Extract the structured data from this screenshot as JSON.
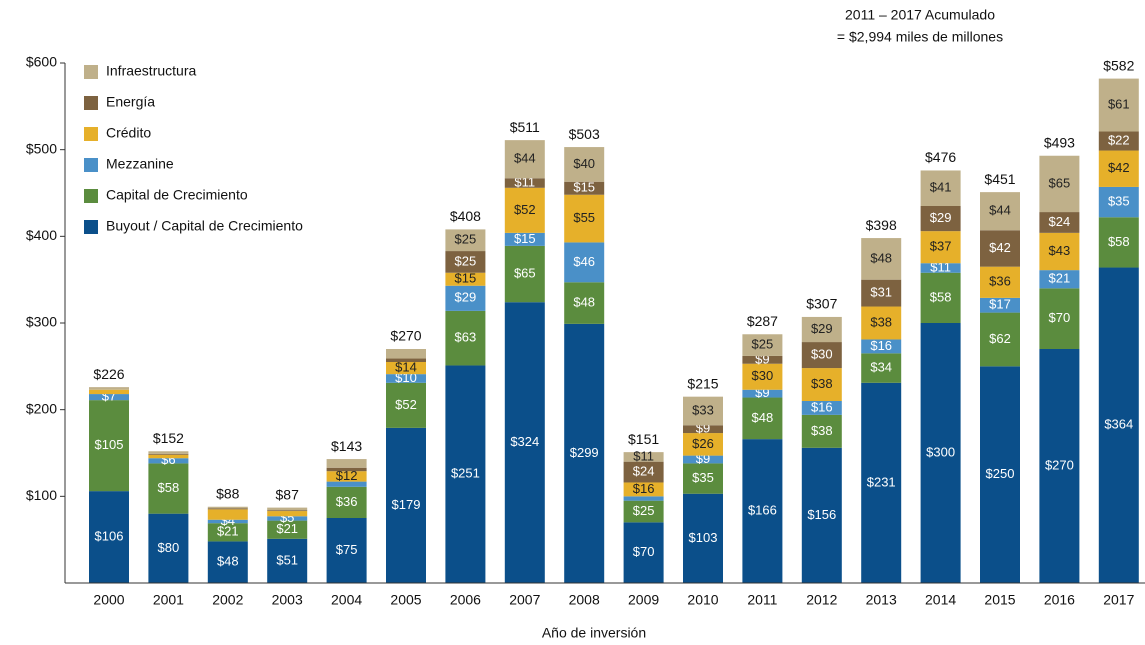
{
  "chart_data": {
    "type": "stacked_bar",
    "annotation": [
      "2011 – 2017 Acumulado",
      "= $2,994 miles de millones"
    ],
    "xlabel": "Año de inversión",
    "categories": [
      "2000",
      "2001",
      "2002",
      "2003",
      "2004",
      "2005",
      "2006",
      "2007",
      "2008",
      "2009",
      "2010",
      "2011",
      "2012",
      "2013",
      "2014",
      "2015",
      "2016",
      "2017"
    ],
    "series": [
      {
        "name": "Buyout / Capital de Crecimiento",
        "color": "#0b4f8a",
        "label_color": "#ffffff",
        "values": [
          106,
          80,
          48,
          51,
          75,
          179,
          251,
          324,
          299,
          70,
          103,
          166,
          156,
          231,
          300,
          250,
          270,
          364
        ],
        "value_labels": [
          "$106",
          "$80",
          "$48",
          "$51",
          "$75",
          "$179",
          "$251",
          "$324",
          "$299",
          "$70",
          "$103",
          "$166",
          "$156",
          "$231",
          "$300",
          "$250",
          "$270",
          "$364"
        ]
      },
      {
        "name": "Capital de Crecimiento",
        "color": "#5b8c3e",
        "label_color": "#ffffff",
        "values": [
          105,
          58,
          21,
          21,
          36,
          52,
          63,
          65,
          48,
          25,
          35,
          48,
          38,
          34,
          58,
          62,
          70,
          58
        ],
        "value_labels": [
          "$105",
          "$58",
          "$21",
          "$21",
          "$36",
          "$52",
          "$63",
          "$65",
          "$48",
          "$25",
          "$35",
          "$48",
          "$38",
          "$34",
          "$58",
          "$62",
          "$70",
          "$58"
        ]
      },
      {
        "name": "Mezzanine",
        "color": "#4a90c8",
        "label_color": "#ffffff",
        "values": [
          7,
          6,
          4,
          5,
          6,
          10,
          29,
          15,
          46,
          5,
          9,
          9,
          16,
          16,
          11,
          17,
          21,
          35
        ],
        "value_labels": [
          "$7",
          "$6",
          "$4",
          "$5",
          null,
          "$10",
          "$29",
          "$15",
          "$46",
          null,
          "$9",
          "$9",
          "$16",
          "$16",
          "$11",
          "$17",
          "$21",
          "$35"
        ]
      },
      {
        "name": "Crédito",
        "color": "#e6b02a",
        "label_color": "#222222",
        "values": [
          5,
          4,
          12,
          6,
          12,
          14,
          15,
          52,
          55,
          16,
          26,
          30,
          38,
          38,
          37,
          36,
          43,
          42
        ],
        "value_labels": [
          null,
          null,
          null,
          null,
          "$12",
          "$14",
          "$15",
          "$52",
          "$55",
          "$16",
          "$26",
          "$30",
          "$38",
          "$38",
          "$37",
          "$36",
          "$43",
          "$42"
        ]
      },
      {
        "name": "Energía",
        "color": "#7d6240",
        "label_color": "#ffffff",
        "values": [
          0,
          1,
          1,
          1,
          4,
          4,
          25,
          11,
          15,
          24,
          9,
          9,
          30,
          31,
          29,
          42,
          24,
          22
        ],
        "value_labels": [
          null,
          null,
          null,
          null,
          null,
          null,
          "$25",
          "$11",
          "$15",
          "$24",
          "$9",
          "$9",
          "$30",
          "$31",
          "$29",
          "$42",
          "$24",
          "$22"
        ]
      },
      {
        "name": "Infraestructura",
        "color": "#bfb08a",
        "label_color": "#222222",
        "values": [
          3,
          3,
          2,
          3,
          10,
          11,
          25,
          44,
          40,
          11,
          33,
          25,
          29,
          48,
          41,
          44,
          65,
          61
        ],
        "value_labels": [
          null,
          null,
          null,
          null,
          null,
          null,
          "$25",
          "$44",
          "$40",
          "$11",
          "$33",
          "$25",
          "$29",
          "$48",
          "$41",
          "$44",
          "$65",
          "$61"
        ]
      }
    ],
    "totals": [
      226,
      152,
      88,
      87,
      143,
      270,
      408,
      511,
      503,
      151,
      215,
      287,
      307,
      398,
      476,
      451,
      493,
      582
    ],
    "total_labels": [
      "$226",
      "$152",
      "$88",
      "$87",
      "$143",
      "$270",
      "$408",
      "$511",
      "$503",
      "$151",
      "$215",
      "$287",
      "$307",
      "$398",
      "$476",
      "$451",
      "$493",
      "$582"
    ],
    "ylim": [
      0,
      600
    ],
    "yticks": [
      {
        "value": 100,
        "label": "$100"
      },
      {
        "value": 200,
        "label": "$200"
      },
      {
        "value": 300,
        "label": "$300"
      },
      {
        "value": 400,
        "label": "$400"
      },
      {
        "value": 500,
        "label": "$500"
      },
      {
        "value": 600,
        "label": "$600"
      }
    ],
    "legend": "upper left"
  }
}
